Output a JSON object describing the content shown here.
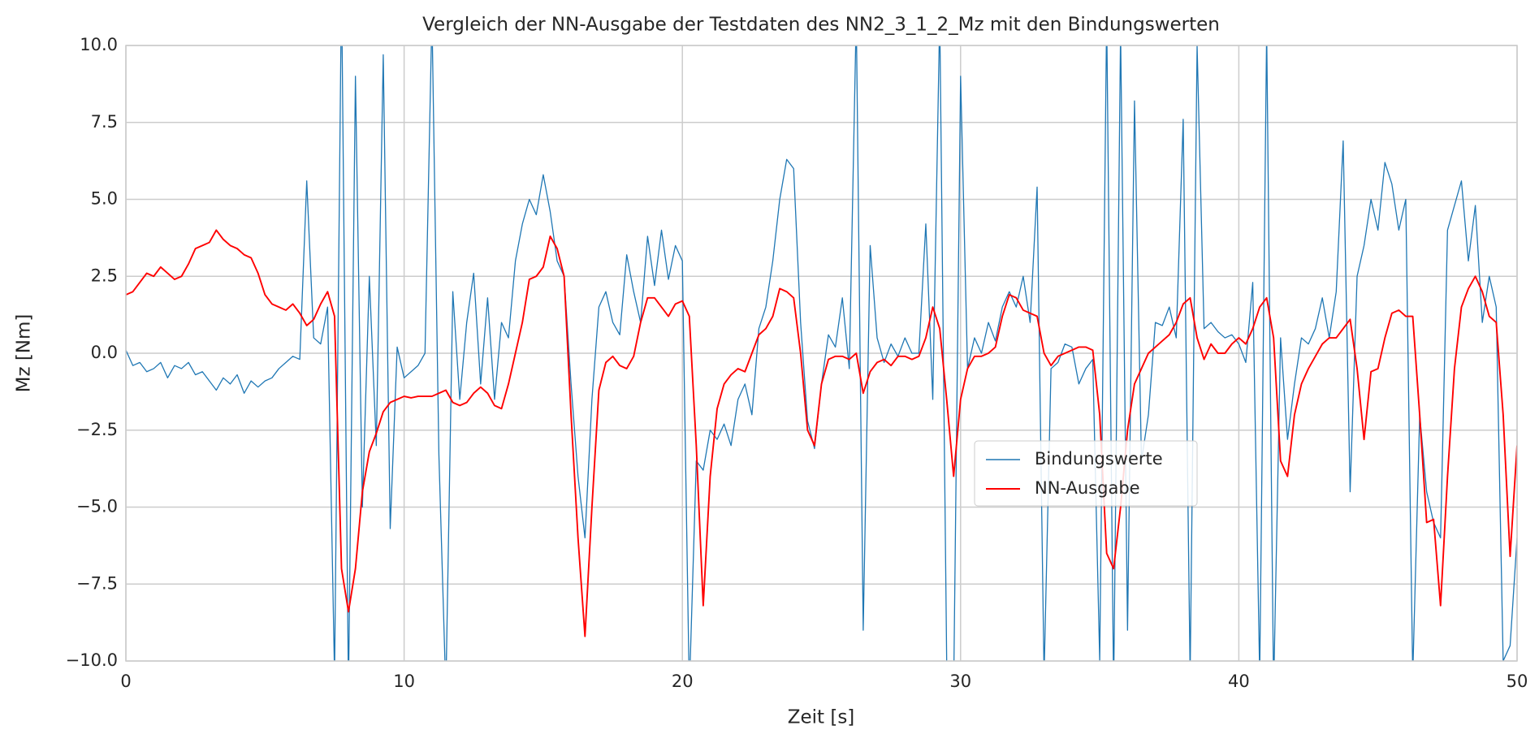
{
  "chart_data": {
    "type": "line",
    "title": "Vergleich der NN-Ausgabe der Testdaten des NN2_3_1_2_Mz mit den Bindungswerten",
    "x_label": "Zeit [s]",
    "y_label": "Mz [Nm]",
    "grid": true,
    "xlim": [
      0,
      50
    ],
    "ylim": [
      -10,
      10
    ],
    "xticks": [
      0,
      10,
      20,
      30,
      40,
      50
    ],
    "yticks": [
      {
        "value": -10,
        "label": "−10.0"
      },
      {
        "value": -7.5,
        "label": "−7.5"
      },
      {
        "value": -5,
        "label": "−5.0"
      },
      {
        "value": -2.5,
        "label": "−2.5"
      },
      {
        "value": 0,
        "label": "0.0"
      },
      {
        "value": 2.5,
        "label": "2.5"
      },
      {
        "value": 5,
        "label": "5.0"
      },
      {
        "value": 7.5,
        "label": "7.5"
      },
      {
        "value": 10,
        "label": "10.0"
      }
    ],
    "x": [
      0,
      0.25,
      0.5,
      0.75,
      1,
      1.25,
      1.5,
      1.75,
      2,
      2.25,
      2.5,
      2.75,
      3,
      3.25,
      3.5,
      3.75,
      4,
      4.25,
      4.5,
      4.75,
      5,
      5.25,
      5.5,
      5.75,
      6,
      6.25,
      6.5,
      6.75,
      7,
      7.25,
      7.5,
      7.75,
      8,
      8.25,
      8.5,
      8.75,
      9,
      9.25,
      9.5,
      9.75,
      10,
      10.25,
      10.5,
      10.75,
      11,
      11.25,
      11.5,
      11.75,
      12,
      12.25,
      12.5,
      12.75,
      13,
      13.25,
      13.5,
      13.75,
      14,
      14.25,
      14.5,
      14.75,
      15,
      15.25,
      15.5,
      15.75,
      16,
      16.25,
      16.5,
      16.75,
      17,
      17.25,
      17.5,
      17.75,
      18,
      18.25,
      18.5,
      18.75,
      19,
      19.25,
      19.5,
      19.75,
      20,
      20.25,
      20.5,
      20.75,
      21,
      21.25,
      21.5,
      21.75,
      22,
      22.25,
      22.5,
      22.75,
      23,
      23.25,
      23.5,
      23.75,
      24,
      24.25,
      24.5,
      24.75,
      25,
      25.25,
      25.5,
      25.75,
      26,
      26.25,
      26.5,
      26.75,
      27,
      27.25,
      27.5,
      27.75,
      28,
      28.25,
      28.5,
      28.75,
      29,
      29.25,
      29.5,
      29.75,
      30,
      30.25,
      30.5,
      30.75,
      31,
      31.25,
      31.5,
      31.75,
      32,
      32.25,
      32.5,
      32.75,
      33,
      33.25,
      33.5,
      33.75,
      34,
      34.25,
      34.5,
      34.75,
      35,
      35.25,
      35.5,
      35.75,
      36,
      36.25,
      36.5,
      36.75,
      37,
      37.25,
      37.5,
      37.75,
      38,
      38.25,
      38.5,
      38.75,
      39,
      39.25,
      39.5,
      39.75,
      40,
      40.25,
      40.5,
      40.75,
      41,
      41.25,
      41.5,
      41.75,
      42,
      42.25,
      42.5,
      42.75,
      43,
      43.25,
      43.5,
      43.75,
      44,
      44.25,
      44.5,
      44.75,
      45,
      45.25,
      45.5,
      45.75,
      46,
      46.25,
      46.5,
      46.75,
      47,
      47.25,
      47.5,
      47.75,
      48,
      48.25,
      48.5,
      48.75,
      49,
      49.25,
      49.5,
      49.75,
      50
    ],
    "series": [
      {
        "name": "Bindungswerte",
        "color": "#1f77b4",
        "values": [
          0.1,
          -0.4,
          -0.3,
          -0.6,
          -0.5,
          -0.3,
          -0.8,
          -0.4,
          -0.5,
          -0.3,
          -0.7,
          -0.6,
          -0.9,
          -1.2,
          -0.8,
          -1.0,
          -0.7,
          -1.3,
          -0.9,
          -1.1,
          -0.9,
          -0.8,
          -0.5,
          -0.3,
          -0.1,
          -0.2,
          5.6,
          0.5,
          0.3,
          1.5,
          -10.5,
          12,
          -11,
          9.0,
          -5,
          2.5,
          -3,
          9.7,
          -5.7,
          0.2,
          -0.8,
          -0.6,
          -0.4,
          0.0,
          11,
          -3.3,
          -11,
          2.0,
          -1.5,
          1.0,
          2.6,
          -1.0,
          1.8,
          -1.5,
          1.0,
          0.5,
          3.0,
          4.2,
          5.0,
          4.5,
          5.8,
          4.6,
          3.0,
          2.5,
          -1.0,
          -4.0,
          -6.0,
          -1.5,
          1.5,
          2.0,
          1.0,
          0.6,
          3.2,
          2.0,
          1.0,
          3.8,
          2.2,
          4.0,
          2.4,
          3.5,
          3.0,
          -11,
          -3.5,
          -3.8,
          -2.5,
          -2.8,
          -2.3,
          -3.0,
          -1.5,
          -1.0,
          -2.0,
          0.8,
          1.5,
          3.0,
          5.0,
          6.3,
          6.0,
          1.0,
          -2.2,
          -3.1,
          -1.0,
          0.6,
          0.2,
          1.8,
          -0.5,
          11,
          -9,
          3.5,
          0.5,
          -0.3,
          0.3,
          -0.1,
          0.5,
          0.0,
          0.0,
          4.2,
          -1.5,
          11,
          -10,
          -11,
          9,
          -0.5,
          0.5,
          0.0,
          1.0,
          0.4,
          1.5,
          2.0,
          1.5,
          2.5,
          1.0,
          5.4,
          -10.5,
          -0.5,
          -0.3,
          0.3,
          0.2,
          -1.0,
          -0.5,
          -0.2,
          -10,
          11,
          -11,
          10.5,
          -9,
          8.2,
          -3.5,
          -2.0,
          1.0,
          0.9,
          1.5,
          0.5,
          7.6,
          -10.5,
          10,
          0.8,
          1.0,
          0.7,
          0.5,
          0.6,
          0.3,
          -0.3,
          2.3,
          -10.5,
          10.5,
          -11,
          0.5,
          -2.8,
          -1.0,
          0.5,
          0.3,
          0.8,
          1.8,
          0.5,
          2.0,
          6.9,
          -4.5,
          2.5,
          3.5,
          5.0,
          4.0,
          6.2,
          5.5,
          4.0,
          5.0,
          -10.5,
          -2.0,
          -4.5,
          -5.5,
          -6.0,
          4.0,
          4.8,
          5.6,
          3.0,
          4.8,
          1.0,
          2.5,
          1.5,
          -10,
          -9.5,
          -6.0
        ]
      },
      {
        "name": "NN-Ausgabe",
        "color": "#ff0000",
        "values": [
          1.9,
          2.0,
          2.3,
          2.6,
          2.5,
          2.8,
          2.6,
          2.4,
          2.5,
          2.9,
          3.4,
          3.5,
          3.6,
          4.0,
          3.7,
          3.5,
          3.4,
          3.2,
          3.1,
          2.6,
          1.9,
          1.6,
          1.5,
          1.4,
          1.6,
          1.3,
          0.9,
          1.1,
          1.6,
          2.0,
          1.2,
          -7.0,
          -8.4,
          -7.0,
          -4.5,
          -3.2,
          -2.6,
          -1.9,
          -1.6,
          -1.5,
          -1.4,
          -1.45,
          -1.4,
          -1.4,
          -1.4,
          -1.3,
          -1.2,
          -1.6,
          -1.7,
          -1.6,
          -1.3,
          -1.1,
          -1.3,
          -1.7,
          -1.8,
          -1.0,
          0.0,
          1.0,
          2.4,
          2.5,
          2.8,
          3.8,
          3.4,
          2.5,
          -2.0,
          -6.0,
          -9.2,
          -5.0,
          -1.2,
          -0.3,
          -0.1,
          -0.4,
          -0.5,
          -0.1,
          1.0,
          1.8,
          1.8,
          1.5,
          1.2,
          1.6,
          1.7,
          1.2,
          -3.0,
          -8.2,
          -4.0,
          -1.8,
          -1.0,
          -0.7,
          -0.5,
          -0.6,
          0.0,
          0.6,
          0.8,
          1.2,
          2.1,
          2.0,
          1.8,
          0.0,
          -2.5,
          -3.0,
          -1.0,
          -0.2,
          -0.1,
          -0.1,
          -0.2,
          0.0,
          -1.3,
          -0.6,
          -0.3,
          -0.2,
          -0.4,
          -0.1,
          -0.1,
          -0.2,
          -0.1,
          0.5,
          1.5,
          0.8,
          -1.5,
          -4.0,
          -1.5,
          -0.5,
          -0.1,
          -0.1,
          0.0,
          0.2,
          1.2,
          1.9,
          1.8,
          1.4,
          1.3,
          1.2,
          0.0,
          -0.4,
          -0.1,
          0.0,
          0.1,
          0.2,
          0.2,
          0.1,
          -2.0,
          -6.5,
          -7.0,
          -5.0,
          -2.5,
          -1.0,
          -0.5,
          0.0,
          0.2,
          0.4,
          0.6,
          1.0,
          1.6,
          1.8,
          0.5,
          -0.2,
          0.3,
          0.0,
          0.0,
          0.3,
          0.5,
          0.3,
          0.8,
          1.5,
          1.8,
          0.5,
          -3.5,
          -4.0,
          -2.0,
          -1.0,
          -0.5,
          -0.1,
          0.3,
          0.5,
          0.5,
          0.8,
          1.1,
          -0.5,
          -2.8,
          -0.6,
          -0.5,
          0.5,
          1.3,
          1.4,
          1.2,
          1.2,
          -2.0,
          -5.5,
          -5.4,
          -8.2,
          -4.0,
          -0.5,
          1.5,
          2.1,
          2.5,
          2.0,
          1.2,
          1.0,
          -2.0,
          -6.6,
          -3.0
        ]
      }
    ]
  }
}
